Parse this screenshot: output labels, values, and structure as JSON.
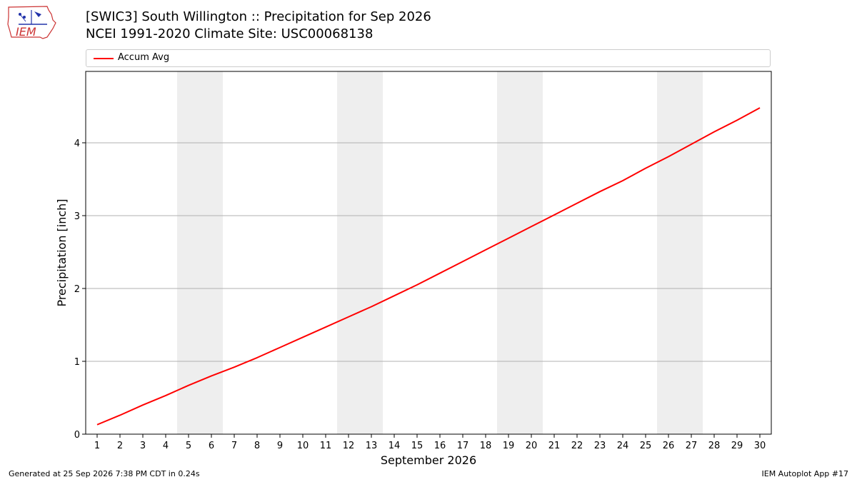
{
  "header": {
    "title_line1": "[SWIC3] South Willington :: Precipitation for Sep 2026",
    "title_line2": "NCEI 1991-2020 Climate Site: USC00068138",
    "logo_text": "IEM"
  },
  "legend": {
    "label": "Accum Avg"
  },
  "footer": {
    "left": "Generated at 25 Sep 2026 7:38 PM CDT in 0.24s",
    "right": "IEM Autoplot App #17"
  },
  "colors": {
    "line": "#ff0000",
    "weekend_band": "#eeeeee",
    "grid": "#b0b0b0",
    "logo": "#cc3333"
  },
  "chart_data": {
    "type": "line",
    "xlabel": "September 2026",
    "ylabel": "Precipitation [inch]",
    "xlim": [
      0.5,
      30.5
    ],
    "ylim": [
      0,
      4.98
    ],
    "grid": "horizontal",
    "legend_position": "top",
    "x_ticks": [
      1,
      2,
      3,
      4,
      5,
      6,
      7,
      8,
      9,
      10,
      11,
      12,
      13,
      14,
      15,
      16,
      17,
      18,
      19,
      20,
      21,
      22,
      23,
      24,
      25,
      26,
      27,
      28,
      29,
      30
    ],
    "y_ticks": [
      0,
      1,
      2,
      3,
      4
    ],
    "weekend_bands": [
      [
        5,
        6
      ],
      [
        12,
        13
      ],
      [
        19,
        20
      ],
      [
        26,
        27
      ]
    ],
    "series": [
      {
        "name": "Accum Avg",
        "x": [
          1,
          2,
          3,
          4,
          5,
          6,
          7,
          8,
          9,
          10,
          11,
          12,
          13,
          14,
          15,
          16,
          17,
          18,
          19,
          20,
          21,
          22,
          23,
          24,
          25,
          26,
          27,
          28,
          29,
          30
        ],
        "values": [
          0.13,
          0.26,
          0.4,
          0.53,
          0.67,
          0.8,
          0.92,
          1.05,
          1.19,
          1.33,
          1.47,
          1.61,
          1.75,
          1.9,
          2.05,
          2.21,
          2.37,
          2.53,
          2.69,
          2.85,
          3.01,
          3.17,
          3.33,
          3.48,
          3.65,
          3.81,
          3.98,
          4.15,
          4.31,
          4.48
        ]
      }
    ]
  }
}
